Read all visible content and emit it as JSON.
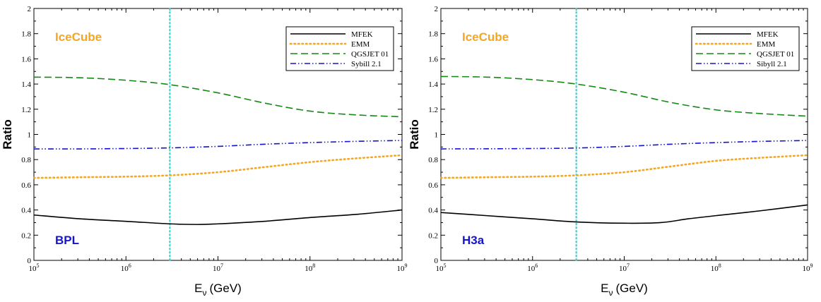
{
  "chart_data": [
    {
      "type": "line",
      "xscale": "log",
      "xlim": [
        100000,
        1000000000
      ],
      "ylim": [
        0,
        2
      ],
      "xlabel_main": "E",
      "xlabel_sub": "ν",
      "xlabel_unit": "(GeV)",
      "ylabel": "Ratio",
      "xticks": [
        {
          "base": "10",
          "exp": "5"
        },
        {
          "base": "10",
          "exp": "6"
        },
        {
          "base": "10",
          "exp": "7"
        },
        {
          "base": "10",
          "exp": "8"
        },
        {
          "base": "10",
          "exp": "9"
        }
      ],
      "yticks": [
        "0",
        "0.2",
        "0.4",
        "0.6",
        "0.8",
        "1",
        "1.2",
        "1.4",
        "1.6",
        "1.8",
        "2"
      ],
      "vline_x": 3000000,
      "annotations": {
        "top": "IceCube",
        "bottom": "BPL"
      },
      "legend_position": "top-right",
      "series": [
        {
          "name": "MFEK",
          "style": "solid",
          "color": "#000000",
          "x": [
            100000,
            316000,
            1000000,
            3000000,
            6000000,
            10000000,
            31600000,
            100000000,
            316000000,
            1000000000
          ],
          "y": [
            0.36,
            0.33,
            0.31,
            0.29,
            0.285,
            0.29,
            0.31,
            0.34,
            0.365,
            0.4
          ]
        },
        {
          "name": "EMM",
          "style": "dotted",
          "color": "#f5a623",
          "x": [
            100000,
            316000,
            1000000,
            3000000,
            10000000,
            31600000,
            100000000,
            316000000,
            1000000000
          ],
          "y": [
            0.655,
            0.66,
            0.665,
            0.675,
            0.7,
            0.74,
            0.78,
            0.81,
            0.835
          ]
        },
        {
          "name": "QGSJET 01",
          "style": "dashed",
          "color": "#138a13",
          "x": [
            100000,
            316000,
            1000000,
            3000000,
            10000000,
            31600000,
            100000000,
            316000000,
            1000000000
          ],
          "y": [
            1.455,
            1.45,
            1.43,
            1.395,
            1.33,
            1.25,
            1.185,
            1.155,
            1.14
          ]
        },
        {
          "name": "Sybill 2.1",
          "style": "dashdotdot",
          "color": "#1515d0",
          "x": [
            100000,
            316000,
            1000000,
            3000000,
            10000000,
            31600000,
            100000000,
            316000000,
            1000000000
          ],
          "y": [
            0.885,
            0.885,
            0.888,
            0.893,
            0.905,
            0.922,
            0.935,
            0.945,
            0.952
          ]
        }
      ]
    },
    {
      "type": "line",
      "xscale": "log",
      "xlim": [
        100000,
        1000000000
      ],
      "ylim": [
        0,
        2
      ],
      "xlabel_main": "E",
      "xlabel_sub": "ν",
      "xlabel_unit": "(GeV)",
      "ylabel": "Ratio",
      "xticks": [
        {
          "base": "10",
          "exp": "5"
        },
        {
          "base": "10",
          "exp": "6"
        },
        {
          "base": "10",
          "exp": "7"
        },
        {
          "base": "10",
          "exp": "8"
        },
        {
          "base": "10",
          "exp": "9"
        }
      ],
      "yticks": [
        "0",
        "0.2",
        "0.4",
        "0.6",
        "0.8",
        "1",
        "1.2",
        "1.4",
        "1.6",
        "1.8",
        "2"
      ],
      "vline_x": 3000000,
      "annotations": {
        "top": "IceCube",
        "bottom": "H3a"
      },
      "legend_position": "top-right",
      "series": [
        {
          "name": "MFEK",
          "style": "solid",
          "color": "#000000",
          "x": [
            100000,
            316000,
            1000000,
            3000000,
            10000000,
            25000000,
            50000000,
            100000000,
            316000000,
            1000000000
          ],
          "y": [
            0.38,
            0.355,
            0.33,
            0.305,
            0.295,
            0.3,
            0.33,
            0.355,
            0.395,
            0.44
          ]
        },
        {
          "name": "EMM",
          "style": "dotted",
          "color": "#f5a623",
          "x": [
            100000,
            316000,
            1000000,
            3000000,
            10000000,
            31600000,
            100000000,
            316000000,
            1000000000
          ],
          "y": [
            0.655,
            0.66,
            0.665,
            0.675,
            0.7,
            0.745,
            0.79,
            0.815,
            0.835
          ]
        },
        {
          "name": "QGSJET 01",
          "style": "dashed",
          "color": "#138a13",
          "x": [
            100000,
            316000,
            1000000,
            3000000,
            10000000,
            31600000,
            100000000,
            316000000,
            1000000000
          ],
          "y": [
            1.46,
            1.455,
            1.435,
            1.4,
            1.335,
            1.255,
            1.195,
            1.165,
            1.145
          ]
        },
        {
          "name": "Sibyll 2.1",
          "style": "dashdotdot",
          "color": "#1515d0",
          "x": [
            100000,
            316000,
            1000000,
            3000000,
            10000000,
            31600000,
            100000000,
            316000000,
            1000000000
          ],
          "y": [
            0.885,
            0.886,
            0.888,
            0.892,
            0.905,
            0.922,
            0.935,
            0.945,
            0.952
          ]
        }
      ]
    }
  ],
  "colors": {
    "vline": "#40d0d0",
    "annotation_top": "#f5a623",
    "annotation_bottom": "#1515d0"
  }
}
